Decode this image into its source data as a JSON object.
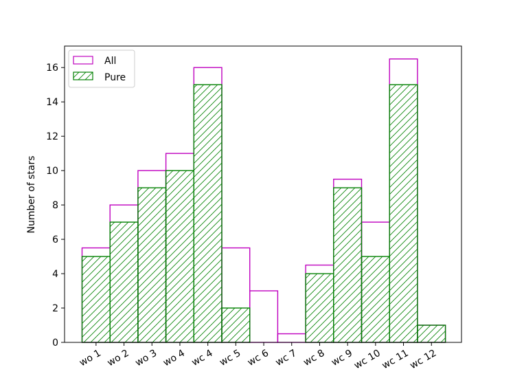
{
  "chart_data": {
    "type": "bar",
    "xlabel": "",
    "ylabel": "Number of stars",
    "ylim": [
      0,
      17.25
    ],
    "yticks": [
      0,
      2,
      4,
      6,
      8,
      10,
      12,
      14,
      16
    ],
    "categories": [
      "wo 1",
      "wo 2",
      "wo 3",
      "wo 4",
      "wc 4",
      "wc 5",
      "wc 6",
      "wc 7",
      "wc 8",
      "wc 9",
      "wc 10",
      "wc 11",
      "wc 12"
    ],
    "series": [
      {
        "name": "All",
        "values": [
          5.5,
          8,
          10,
          11,
          16,
          5.5,
          3,
          0.5,
          4.5,
          9.5,
          7,
          16.5,
          1
        ],
        "color": "#bf00bf",
        "style": "outline"
      },
      {
        "name": "Pure",
        "values": [
          5,
          7,
          9,
          10,
          15,
          2,
          0,
          0,
          4,
          9,
          5,
          15,
          1
        ],
        "color": "#008000",
        "style": "hatched"
      }
    ],
    "legend_position": "top-left",
    "grid": false
  }
}
